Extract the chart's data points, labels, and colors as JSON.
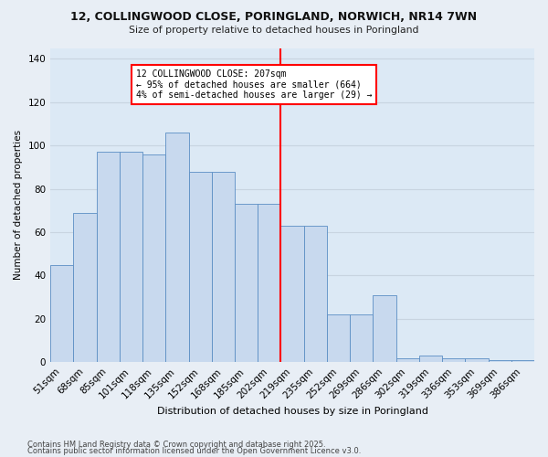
{
  "title": "12, COLLINGWOOD CLOSE, PORINGLAND, NORWICH, NR14 7WN",
  "subtitle": "Size of property relative to detached houses in Poringland",
  "xlabel": "Distribution of detached houses by size in Poringland",
  "ylabel": "Number of detached properties",
  "bar_color": "#c8d9ee",
  "bar_edge_color": "#5b8ec4",
  "background_color": "#dce9f5",
  "fig_background": "#e8eef5",
  "grid_color": "#c8d4e0",
  "categories": [
    "51sqm",
    "68sqm",
    "85sqm",
    "101sqm",
    "118sqm",
    "135sqm",
    "152sqm",
    "168sqm",
    "185sqm",
    "202sqm",
    "219sqm",
    "235sqm",
    "252sqm",
    "269sqm",
    "286sqm",
    "302sqm",
    "319sqm",
    "336sqm",
    "353sqm",
    "369sqm",
    "386sqm"
  ],
  "values": [
    45,
    69,
    97,
    97,
    96,
    106,
    88,
    88,
    73,
    73,
    63,
    63,
    22,
    22,
    31,
    2,
    3,
    2,
    2,
    1,
    1
  ],
  "red_line_index": 9.5,
  "annotation_text": "12 COLLINGWOOD CLOSE: 207sqm\n← 95% of detached houses are smaller (664)\n4% of semi-detached houses are larger (29) →",
  "ylim": [
    0,
    145
  ],
  "yticks": [
    0,
    20,
    40,
    60,
    80,
    100,
    120,
    140
  ],
  "footnote1": "Contains HM Land Registry data © Crown copyright and database right 2025.",
  "footnote2": "Contains public sector information licensed under the Open Government Licence v3.0."
}
